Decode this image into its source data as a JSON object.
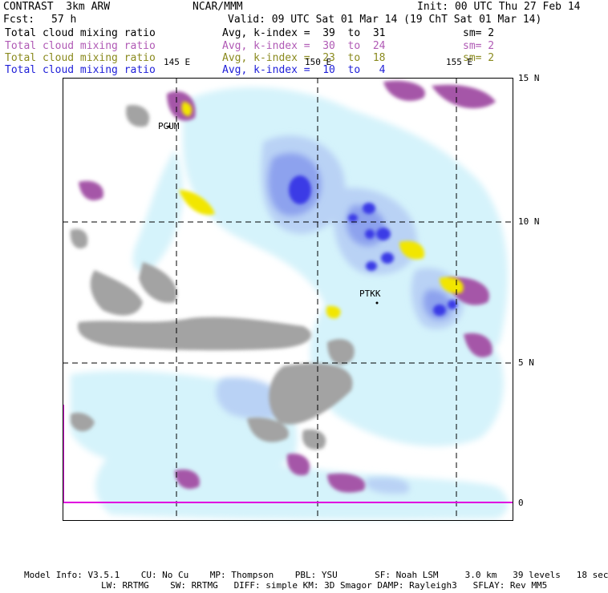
{
  "header": {
    "model": "CONTRAST  3km ARW",
    "center": "NCAR/MMM",
    "init": "Init: 00 UTC Thu 27 Feb 14",
    "fcst_label": "Fcst:",
    "fcst_value": "57 h",
    "valid": "Valid: 09 UTC Sat 01 Mar 14 (19 ChT Sat 01 Mar 14)"
  },
  "legend": [
    {
      "name": "Total cloud mixing ratio",
      "range": "Avg, k-index =  39  to  31",
      "sm": "sm= 2",
      "color": "#000000"
    },
    {
      "name": "Total cloud mixing ratio",
      "range": "Avg, k-index =  30  to  24",
      "sm": "sm= 2",
      "color": "#b05ab5"
    },
    {
      "name": "Total cloud mixing ratio",
      "range": "Avg, k-index =  23  to  18",
      "sm": "sm= 2",
      "color": "#8a8a1e"
    },
    {
      "name": "Total cloud mixing ratio",
      "range": "Avg, k-index =  10  to   4",
      "sm": "",
      "color": "#2020d8"
    }
  ],
  "axes": {
    "lon_labels": [
      "145 E",
      "150 E",
      "155 E"
    ],
    "lat_labels": [
      "15 N",
      "10 N",
      "5 N",
      "0"
    ]
  },
  "stations": [
    "PGUM",
    "PTKK"
  ],
  "footer": {
    "line1": "Model Info: V3.5.1    CU: No Cu    MP: Thompson    PBL: YSU       SF: Noah LSM     3.0 km   39 levels   18 sec",
    "line2": "LW: RRTMG    SW: RRTMG   DIFF: simple KM: 3D Smagor DAMP: Rayleigh3   SFLAY: Rev MM5"
  }
}
